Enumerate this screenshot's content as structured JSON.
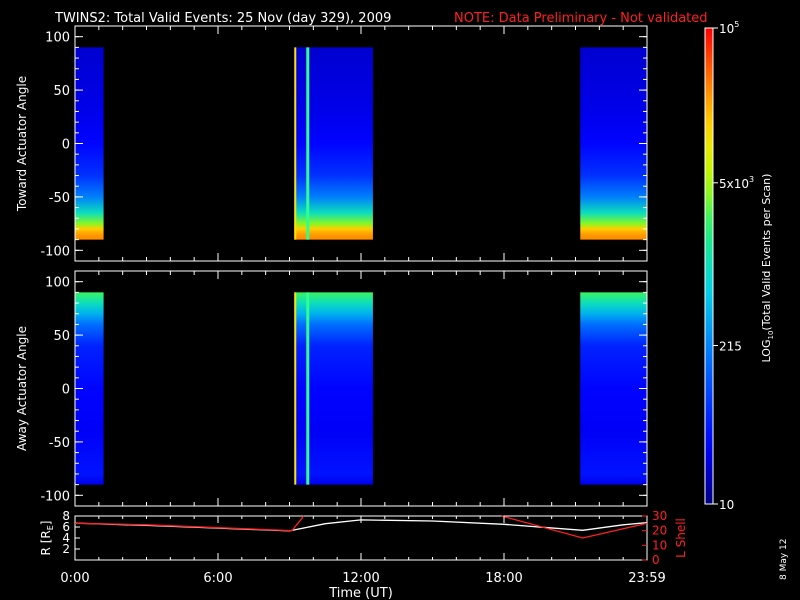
{
  "header": {
    "title": "TWINS2: Total Valid Events: 25 Nov (day 329), 2009",
    "note": "NOTE: Data Preliminary - Not validated"
  },
  "footer": {
    "date_stamp": "8 May 12"
  },
  "colors": {
    "note": "#ff2020",
    "lshell": "#ff2020",
    "radius": "#ffffff",
    "background": "#000000"
  },
  "chart_data": [
    {
      "type": "heatmap",
      "panel": "toward",
      "ylabel": "Toward Actuator Angle",
      "ylim": [
        -110,
        110
      ],
      "yticks": [
        100,
        50,
        0,
        -50,
        -100
      ],
      "xlim_hours": [
        0,
        24
      ],
      "angle_range": [
        -90,
        90
      ],
      "data_intervals_hours": [
        [
          0,
          1.2
        ],
        [
          9.2,
          12.5
        ],
        [
          21.2,
          24
        ]
      ],
      "profile": {
        "angles": [
          90,
          60,
          30,
          0,
          -30,
          -50,
          -65,
          -75,
          -80,
          -85,
          -90
        ],
        "log10_events": [
          1.3,
          1.35,
          1.4,
          1.5,
          1.8,
          2.3,
          3.0,
          3.6,
          4.2,
          4.4,
          4.5
        ]
      }
    },
    {
      "type": "heatmap",
      "panel": "away",
      "ylabel": "Away Actuator Angle",
      "ylim": [
        -110,
        110
      ],
      "yticks": [
        100,
        50,
        0,
        -50,
        -100
      ],
      "xlim_hours": [
        0,
        24
      ],
      "angle_range": [
        -90,
        90
      ],
      "data_intervals_hours": [
        [
          0,
          1.2
        ],
        [
          9.2,
          12.5
        ],
        [
          21.2,
          24
        ]
      ],
      "profile": {
        "angles": [
          90,
          80,
          70,
          60,
          40,
          0,
          -40,
          -80,
          -90
        ],
        "log10_events": [
          3.4,
          3.0,
          2.6,
          2.2,
          1.7,
          1.5,
          1.45,
          1.6,
          1.4
        ]
      }
    },
    {
      "type": "line",
      "panel": "orbit",
      "xlabel": "Time (UT)",
      "xticks": [
        "0:00",
        "6:00",
        "12:00",
        "18:00",
        "23:59"
      ],
      "xtick_hours": [
        0,
        6,
        12,
        18,
        24
      ],
      "ylabel_left": "R [R",
      "ylabel_left_sub": "E",
      "ylabel_left_close": "]",
      "ylabel_right": "L Shell",
      "yticks_left": [
        8,
        6,
        4,
        2
      ],
      "yticks_right": [
        30,
        20,
        10,
        0
      ],
      "ylim_left": [
        0,
        8
      ],
      "ylim_right": [
        0,
        30
      ],
      "series": [
        {
          "name": "R",
          "color": "#ffffff",
          "hours": [
            0,
            3,
            6,
            9,
            10.5,
            12,
            15,
            18,
            21.3,
            23,
            24
          ],
          "values": [
            6.7,
            6.3,
            5.8,
            5.3,
            6.6,
            7.3,
            7.1,
            6.5,
            5.4,
            6.4,
            6.8
          ]
        },
        {
          "name": "L Shell",
          "color": "#ff2020",
          "segments": [
            {
              "hours": [
                0,
                3,
                6,
                9.1,
                9.6
              ],
              "values": [
                25,
                24,
                22,
                20,
                30
              ]
            },
            {
              "hours": [
                17.9,
                21.3,
                24
              ],
              "values": [
                30,
                15,
                25
              ]
            }
          ]
        }
      ]
    }
  ],
  "colorbar": {
    "label": "LOG",
    "label_sub": "10",
    "label_rest": "(Total Valid Events per Scan)",
    "log_range": [
      1,
      5
    ],
    "ticks": [
      {
        "log": 5,
        "base": "10",
        "exp": "5"
      },
      {
        "log": 3.699,
        "base": "5x10",
        "exp": "3"
      },
      {
        "log": 2.332,
        "base": "215",
        "exp": ""
      },
      {
        "log": 1,
        "base": "10",
        "exp": ""
      }
    ]
  }
}
